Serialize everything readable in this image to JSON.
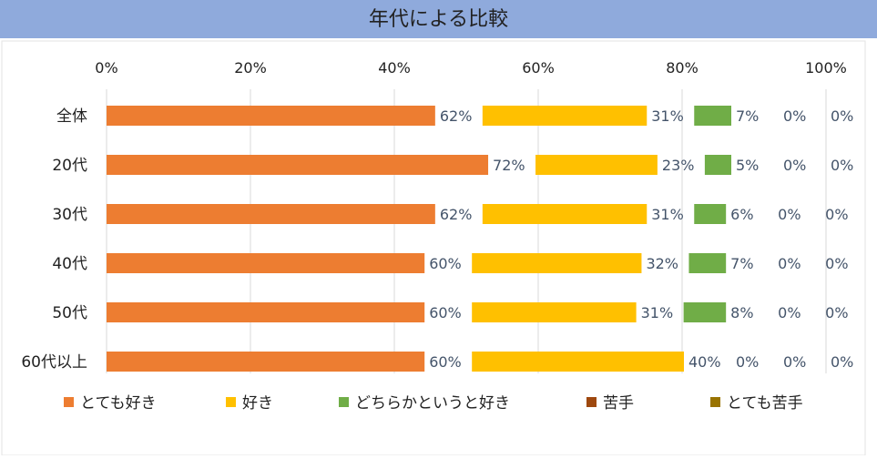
{
  "chart_data": {
    "type": "bar",
    "orientation": "horizontal",
    "stacked": true,
    "title": "年代による比較",
    "categories": [
      "全体",
      "20代",
      "30代",
      "40代",
      "50代",
      "60代以上"
    ],
    "x_ticks": [
      "0%",
      "20%",
      "40%",
      "60%",
      "80%",
      "100%"
    ],
    "xlim": [
      0,
      100
    ],
    "grid": true,
    "legend_position": "bottom",
    "colors": {
      "title_band": "#8faadc",
      "label_text": "#44546a"
    },
    "series": [
      {
        "name": "とても好き",
        "color": "#ed7d31",
        "values": [
          62,
          72,
          62,
          60,
          60,
          60
        ],
        "labels": [
          "62%",
          "72%",
          "62%",
          "60%",
          "60%",
          "60%"
        ]
      },
      {
        "name": "好き",
        "color": "#ffc000",
        "values": [
          31,
          23,
          31,
          32,
          31,
          40
        ],
        "labels": [
          "31%",
          "23%",
          "31%",
          "32%",
          "31%",
          "40%"
        ]
      },
      {
        "name": "どちらかというと好き",
        "color": "#70ad47",
        "values": [
          7,
          5,
          6,
          7,
          8,
          0
        ],
        "labels": [
          "7%",
          "5%",
          "6%",
          "7%",
          "8%",
          "0%"
        ]
      },
      {
        "name": "苦手",
        "color": "#9e480e",
        "values": [
          0,
          0,
          0,
          0,
          0,
          0
        ],
        "labels": [
          "0%",
          "0%",
          "0%",
          "0%",
          "0%",
          "0%"
        ]
      },
      {
        "name": "とても苦手",
        "color": "#997300",
        "values": [
          0,
          0,
          0,
          0,
          0,
          0
        ],
        "labels": [
          "0%",
          "0%",
          "0%",
          "0%",
          "0%",
          "0%"
        ]
      }
    ]
  }
}
